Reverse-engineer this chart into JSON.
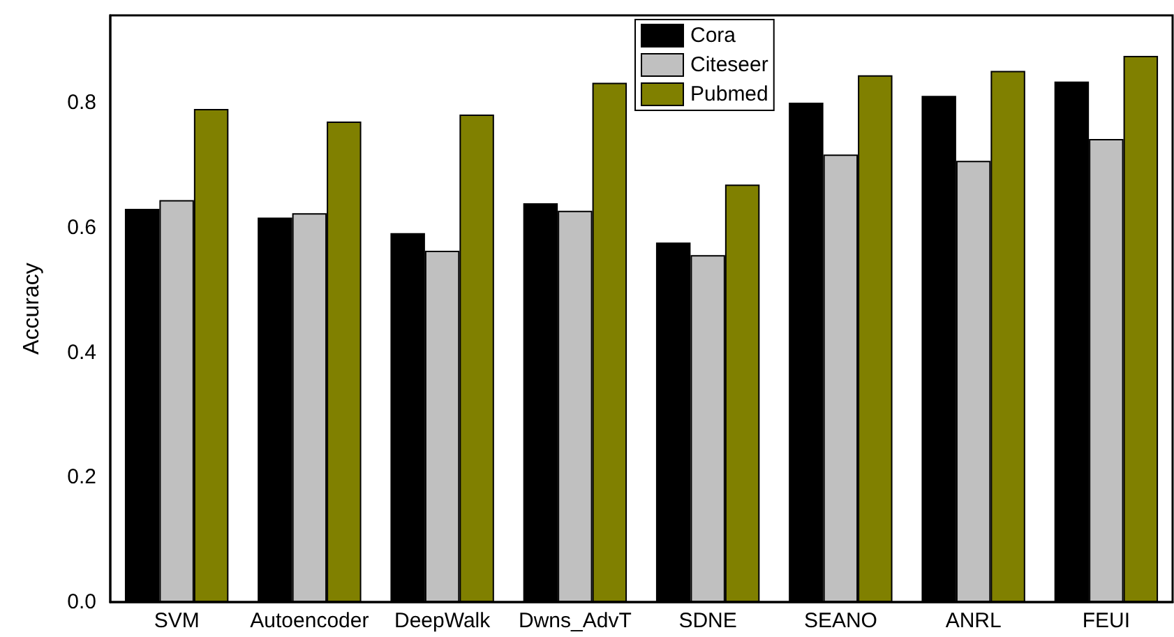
{
  "chart_data": {
    "type": "bar",
    "ylabel": "Accuracy",
    "categories": [
      "SVM",
      "Autoencoder",
      "DeepWalk",
      "Dwns_AdvT",
      "SDNE",
      "SEANO",
      "ANRL",
      "FEUI"
    ],
    "series": [
      {
        "name": "Cora",
        "color": "#000000",
        "values": [
          0.63,
          0.616,
          0.591,
          0.639,
          0.576,
          0.8,
          0.811,
          0.834
        ]
      },
      {
        "name": "Citeseer",
        "color": "#c0c0c0",
        "values": [
          0.644,
          0.623,
          0.563,
          0.627,
          0.556,
          0.717,
          0.707,
          0.742
        ]
      },
      {
        "name": "Pubmed",
        "color": "#808000",
        "values": [
          0.79,
          0.77,
          0.781,
          0.832,
          0.669,
          0.844,
          0.851,
          0.875
        ]
      }
    ],
    "ylim": [
      0,
      0.94
    ],
    "yticks": [
      {
        "value": 0,
        "label": "0.0"
      },
      0.2,
      0.4,
      0.6,
      0.8
    ],
    "grid": false,
    "legend": "top"
  }
}
